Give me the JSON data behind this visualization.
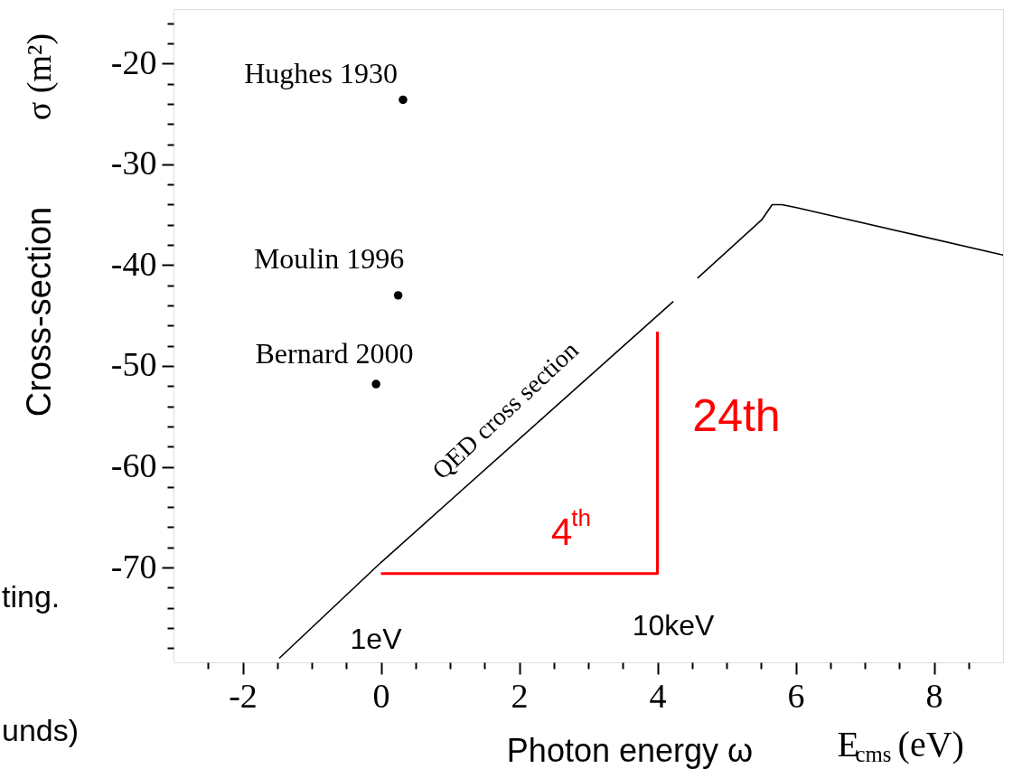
{
  "chart_data": {
    "type": "line",
    "xlabel": "E$_{cms}$ (eV)",
    "ylabel": "σ (m²)",
    "xlim": [
      -3,
      9
    ],
    "ylim": [
      -79.4,
      -14.6
    ],
    "xticks": [
      {
        "value": -2.5,
        "label": null
      },
      -2,
      {
        "value": -1.5,
        "label": null
      },
      {
        "value": -1,
        "label": null
      },
      {
        "value": -0.5,
        "label": null
      },
      0,
      {
        "value": 0.5,
        "label": null
      },
      {
        "value": 1,
        "label": null
      },
      {
        "value": 1.5,
        "label": null
      },
      2,
      {
        "value": 2.5,
        "label": null
      },
      {
        "value": 3,
        "label": null
      },
      {
        "value": 3.5,
        "label": null
      },
      4,
      {
        "value": 4.5,
        "label": null
      },
      {
        "value": 5,
        "label": null
      },
      {
        "value": 5.5,
        "label": null
      },
      6,
      {
        "value": 6.5,
        "label": null
      },
      {
        "value": 7,
        "label": null
      },
      {
        "value": 7.5,
        "label": null
      },
      8,
      {
        "value": 8.5,
        "label": null
      }
    ],
    "yticks": [
      {
        "value": -78,
        "label": null
      },
      {
        "value": -76,
        "label": null
      },
      {
        "value": -74,
        "label": null
      },
      {
        "value": -72,
        "label": null
      },
      -70,
      {
        "value": -68,
        "label": null
      },
      {
        "value": -66,
        "label": null
      },
      {
        "value": -64,
        "label": null
      },
      {
        "value": -62,
        "label": null
      },
      -60,
      {
        "value": -58,
        "label": null
      },
      {
        "value": -56,
        "label": null
      },
      {
        "value": -54,
        "label": null
      },
      {
        "value": -52,
        "label": null
      },
      -50,
      {
        "value": -48,
        "label": null
      },
      {
        "value": -46,
        "label": null
      },
      {
        "value": -44,
        "label": null
      },
      {
        "value": -42,
        "label": null
      },
      -40,
      {
        "value": -38,
        "label": null
      },
      {
        "value": -36,
        "label": null
      },
      {
        "value": -34,
        "label": null
      },
      {
        "value": -32,
        "label": null
      },
      -30,
      {
        "value": -28,
        "label": null
      },
      {
        "value": -26,
        "label": null
      },
      {
        "value": -24,
        "label": null
      },
      {
        "value": -22,
        "label": null
      },
      -20,
      {
        "value": -18,
        "label": null
      },
      {
        "value": -16,
        "label": null
      }
    ],
    "series": [
      {
        "type": "line",
        "color": "#000000",
        "x": [
          -1.47,
          0,
          4.23,
          4.4,
          4.58,
          5.51,
          5.66,
          5.8,
          6.01,
          9
        ],
        "values": [
          -79.0,
          -69.5,
          -43.6,
          null,
          -41.3,
          -35.5,
          -34.0,
          -34.0,
          -34.3,
          -39.0
        ]
      },
      {
        "type": "line",
        "color": "#ff0000",
        "x": [
          0,
          4,
          4
        ],
        "values": [
          -70.6,
          -70.6,
          -46.6
        ]
      },
      {
        "type": "scatter",
        "color": "#000000",
        "marker": "circle",
        "x": [
          0.32,
          0.25,
          -0.07
        ],
        "values": [
          -23.6,
          -43.0,
          -51.8
        ]
      }
    ],
    "annotations": [
      "Hughes 1930",
      "Moulin 1996",
      "Bernard 2000",
      "QED cross section",
      "4$^{th}$",
      "24th",
      "1eV",
      "10keV",
      "Cross-section",
      "Photon energy ω",
      "ting.",
      "unds)"
    ]
  }
}
